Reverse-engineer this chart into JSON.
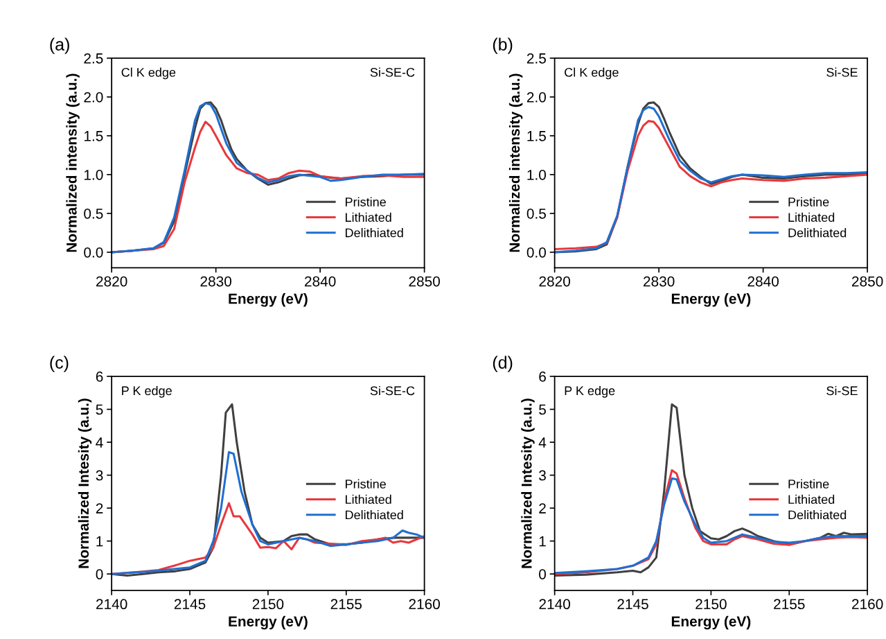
{
  "chart_data": [
    {
      "type": "line",
      "xlabel": "Energy (eV)",
      "ylabel": "Normalized intensity (a.u.)",
      "annotations": [
        "(a)",
        "Cl K edge",
        "Si-SE-C"
      ],
      "xlim": [
        2820,
        2850
      ],
      "xticks": [
        2820,
        2830,
        2840,
        2850
      ],
      "ylim": [
        -0.2,
        2.5
      ],
      "yticks": [
        {
          "value": 0,
          "label": "0.0"
        },
        0.5,
        {
          "value": 1,
          "label": "1.0"
        },
        1.5,
        {
          "value": 2,
          "label": "2.0"
        },
        2.5
      ],
      "legend": "bottom right",
      "grid": false,
      "series": [
        {
          "name": "Pristine",
          "color": "#404040",
          "x": [
            2820,
            2822,
            2824,
            2825,
            2826,
            2827,
            2828,
            2828.5,
            2829,
            2829.5,
            2830,
            2830.5,
            2831,
            2831.5,
            2832,
            2833,
            2834,
            2835,
            2836,
            2837,
            2838,
            2839,
            2840,
            2841,
            2842,
            2844,
            2846,
            2848,
            2850
          ],
          "values": [
            0.0,
            0.02,
            0.05,
            0.12,
            0.4,
            1.0,
            1.6,
            1.85,
            1.92,
            1.93,
            1.85,
            1.7,
            1.5,
            1.32,
            1.2,
            1.05,
            0.95,
            0.87,
            0.9,
            0.95,
            0.99,
            1.0,
            0.98,
            0.96,
            0.95,
            0.97,
            0.98,
            1.0,
            1.0
          ]
        },
        {
          "name": "Lithiated",
          "color": "#e8383d",
          "x": [
            2820,
            2824,
            2825,
            2826,
            2827,
            2828,
            2828.5,
            2829,
            2829.5,
            2830,
            2831,
            2832,
            2833,
            2834,
            2835,
            2836,
            2837,
            2838,
            2839,
            2840,
            2842,
            2844,
            2846,
            2848,
            2850
          ],
          "values": [
            0.0,
            0.04,
            0.08,
            0.3,
            0.9,
            1.35,
            1.55,
            1.68,
            1.62,
            1.5,
            1.25,
            1.08,
            1.02,
            1.0,
            0.93,
            0.95,
            1.02,
            1.05,
            1.04,
            0.98,
            0.95,
            0.98,
            0.99,
            0.97,
            0.97
          ]
        },
        {
          "name": "Delithiated",
          "color": "#1f6fd1",
          "x": [
            2820,
            2822,
            2824,
            2825,
            2826,
            2827,
            2828,
            2828.5,
            2829,
            2829.5,
            2830,
            2831,
            2832,
            2833,
            2834,
            2835,
            2836,
            2837,
            2838,
            2840,
            2841,
            2842,
            2844,
            2846,
            2848,
            2850
          ],
          "values": [
            0.0,
            0.02,
            0.05,
            0.13,
            0.45,
            1.05,
            1.7,
            1.88,
            1.92,
            1.9,
            1.78,
            1.4,
            1.15,
            1.05,
            0.96,
            0.9,
            0.93,
            0.98,
            1.0,
            0.97,
            0.92,
            0.93,
            0.97,
            1.0,
            1.0,
            1.01
          ]
        }
      ]
    },
    {
      "type": "line",
      "xlabel": "Energy (eV)",
      "ylabel": "Normalized intensity (a.u.)",
      "annotations": [
        "(b)",
        "Cl K edge",
        "Si-SE"
      ],
      "xlim": [
        2820,
        2850
      ],
      "xticks": [
        2820,
        2830,
        2840,
        2850
      ],
      "ylim": [
        -0.2,
        2.5
      ],
      "yticks": [
        {
          "value": 0,
          "label": "0.0"
        },
        0.5,
        {
          "value": 1,
          "label": "1.0"
        },
        1.5,
        {
          "value": 2,
          "label": "2.0"
        },
        2.5
      ],
      "legend": "bottom right",
      "grid": false,
      "series": [
        {
          "name": "Pristine",
          "color": "#404040",
          "x": [
            2820,
            2822,
            2824,
            2825,
            2826,
            2827,
            2828,
            2828.5,
            2829,
            2829.5,
            2830,
            2830.5,
            2831,
            2832,
            2833,
            2834,
            2835,
            2836,
            2837,
            2838,
            2840,
            2842,
            2844,
            2846,
            2848,
            2850
          ],
          "values": [
            0.0,
            0.01,
            0.04,
            0.1,
            0.45,
            1.1,
            1.65,
            1.85,
            1.92,
            1.93,
            1.87,
            1.72,
            1.55,
            1.25,
            1.08,
            0.97,
            0.88,
            0.92,
            0.97,
            1.0,
            0.96,
            0.95,
            0.98,
            1.0,
            1.0,
            1.02
          ]
        },
        {
          "name": "Lithiated",
          "color": "#e8383d",
          "x": [
            2820,
            2822,
            2824,
            2825,
            2826,
            2827,
            2828,
            2828.5,
            2829,
            2829.5,
            2830,
            2831,
            2832,
            2833,
            2834,
            2835,
            2836,
            2837,
            2838,
            2840,
            2842,
            2844,
            2846,
            2848,
            2850
          ],
          "values": [
            0.04,
            0.05,
            0.07,
            0.12,
            0.45,
            1.05,
            1.5,
            1.63,
            1.69,
            1.68,
            1.6,
            1.35,
            1.1,
            0.98,
            0.9,
            0.85,
            0.9,
            0.93,
            0.95,
            0.93,
            0.92,
            0.95,
            0.96,
            0.98,
            1.0
          ]
        },
        {
          "name": "Delithiated",
          "color": "#1f6fd1",
          "x": [
            2820,
            2822,
            2824,
            2825,
            2826,
            2827,
            2828,
            2828.5,
            2829,
            2829.5,
            2830,
            2831,
            2832,
            2833,
            2834,
            2835,
            2836,
            2837,
            2838,
            2840,
            2842,
            2844,
            2846,
            2848,
            2850
          ],
          "values": [
            0.0,
            0.02,
            0.05,
            0.13,
            0.47,
            1.1,
            1.7,
            1.83,
            1.87,
            1.85,
            1.75,
            1.45,
            1.18,
            1.05,
            0.95,
            0.9,
            0.94,
            0.98,
            1.0,
            0.99,
            0.97,
            1.0,
            1.02,
            1.02,
            1.03
          ]
        }
      ]
    },
    {
      "type": "line",
      "xlabel": "Energy (eV)",
      "ylabel": "Normalized Intesity (a.u.)",
      "annotations": [
        "(c)",
        "P K edge",
        "Si-SE-C"
      ],
      "xlim": [
        2140,
        2160
      ],
      "xticks": [
        2140,
        2145,
        2150,
        2155,
        2160
      ],
      "ylim": [
        -0.5,
        6
      ],
      "yticks": [
        0,
        1,
        2,
        3,
        4,
        5,
        6
      ],
      "legend": "right",
      "grid": false,
      "series": [
        {
          "name": "Pristine",
          "color": "#404040",
          "x": [
            2140,
            2141,
            2142,
            2143,
            2144,
            2145,
            2146,
            2146.5,
            2147,
            2147.3,
            2147.7,
            2148,
            2148.5,
            2149,
            2149.5,
            2150,
            2151,
            2151.5,
            2152,
            2152.5,
            2153,
            2154,
            2155,
            2156,
            2157,
            2158,
            2159,
            2160
          ],
          "values": [
            0.0,
            -0.05,
            0.0,
            0.05,
            0.08,
            0.15,
            0.35,
            0.8,
            3.0,
            4.9,
            5.15,
            4.0,
            2.5,
            1.5,
            1.1,
            0.95,
            1.0,
            1.15,
            1.2,
            1.2,
            1.05,
            0.9,
            0.9,
            0.95,
            1.05,
            1.1,
            1.1,
            1.1
          ]
        },
        {
          "name": "Lithiated",
          "color": "#e8383d",
          "x": [
            2140,
            2142,
            2143,
            2144,
            2145,
            2146,
            2146.5,
            2147,
            2147.5,
            2147.8,
            2148.2,
            2149,
            2149.5,
            2150,
            2150.5,
            2151,
            2151.5,
            2152,
            2152.5,
            2153,
            2154,
            2155,
            2156,
            2157,
            2157.5,
            2158,
            2158.5,
            2159,
            2159.5,
            2160
          ],
          "values": [
            0.0,
            0.07,
            0.12,
            0.25,
            0.4,
            0.5,
            0.8,
            1.5,
            2.15,
            1.75,
            1.75,
            1.2,
            0.8,
            0.82,
            0.78,
            1.0,
            0.75,
            1.1,
            1.05,
            0.95,
            0.92,
            0.88,
            1.0,
            1.05,
            1.1,
            0.95,
            1.0,
            0.95,
            1.05,
            1.15
          ]
        },
        {
          "name": "Delithiated",
          "color": "#1f6fd1",
          "x": [
            2140,
            2143,
            2145,
            2146,
            2146.5,
            2147,
            2147.5,
            2147.8,
            2148.3,
            2149,
            2149.5,
            2150,
            2151,
            2152,
            2153,
            2154,
            2155,
            2156,
            2157,
            2158,
            2158.6,
            2159,
            2159.5,
            2160
          ],
          "values": [
            0.0,
            0.1,
            0.2,
            0.4,
            1.0,
            2.0,
            3.7,
            3.65,
            2.5,
            1.5,
            1.0,
            0.9,
            1.0,
            1.1,
            1.0,
            0.85,
            0.9,
            0.95,
            1.0,
            1.1,
            1.32,
            1.25,
            1.2,
            1.1
          ]
        }
      ]
    },
    {
      "type": "line",
      "xlabel": "Energy (eV)",
      "ylabel": "Normalized Intesity (a.u.)",
      "annotations": [
        "(d)",
        "P K edge",
        "Si-SE"
      ],
      "xlim": [
        2140,
        2160
      ],
      "xticks": [
        2140,
        2145,
        2150,
        2155,
        2160
      ],
      "ylim": [
        -0.5,
        6
      ],
      "yticks": [
        0,
        1,
        2,
        3,
        4,
        5,
        6
      ],
      "legend": "right",
      "grid": false,
      "series": [
        {
          "name": "Pristine",
          "color": "#404040",
          "x": [
            2140,
            2142,
            2144,
            2145,
            2145.5,
            2146,
            2146.5,
            2147,
            2147.5,
            2147.8,
            2148.3,
            2148.8,
            2149.3,
            2150,
            2150.5,
            2151,
            2151.5,
            2152,
            2152.5,
            2153,
            2154,
            2155,
            2156,
            2157,
            2157.5,
            2158,
            2158.5,
            2159,
            2160
          ],
          "values": [
            -0.05,
            -0.02,
            0.05,
            0.1,
            0.05,
            0.2,
            0.5,
            2.5,
            5.15,
            5.05,
            3.0,
            2.0,
            1.3,
            1.08,
            1.05,
            1.15,
            1.3,
            1.38,
            1.28,
            1.15,
            1.0,
            0.9,
            1.0,
            1.1,
            1.22,
            1.15,
            1.25,
            1.2,
            1.22
          ]
        },
        {
          "name": "Lithiated",
          "color": "#e8383d",
          "x": [
            2140,
            2142,
            2144,
            2145,
            2146,
            2146.5,
            2147,
            2147.5,
            2147.8,
            2148.3,
            2149,
            2149.5,
            2150,
            2151,
            2151.5,
            2152,
            2152.5,
            2153,
            2154,
            2155,
            2156,
            2157,
            2158,
            2159,
            2160
          ],
          "values": [
            0.0,
            0.05,
            0.15,
            0.25,
            0.45,
            0.9,
            2.2,
            3.15,
            3.05,
            2.3,
            1.4,
            1.0,
            0.9,
            0.9,
            1.05,
            1.15,
            1.1,
            1.05,
            0.92,
            0.88,
            1.0,
            1.05,
            1.1,
            1.12,
            1.1
          ]
        },
        {
          "name": "Delithiated",
          "color": "#1f6fd1",
          "x": [
            2140,
            2142,
            2144,
            2145,
            2146,
            2146.5,
            2147,
            2147.5,
            2147.8,
            2148.3,
            2149,
            2149.5,
            2150,
            2151,
            2152,
            2153,
            2154,
            2155,
            2156,
            2157,
            2158,
            2159,
            2160
          ],
          "values": [
            0.03,
            0.08,
            0.15,
            0.25,
            0.5,
            1.0,
            2.1,
            2.9,
            2.87,
            2.2,
            1.5,
            1.1,
            0.95,
            1.0,
            1.2,
            1.1,
            0.98,
            0.95,
            1.0,
            1.1,
            1.15,
            1.15,
            1.15
          ]
        }
      ]
    }
  ]
}
